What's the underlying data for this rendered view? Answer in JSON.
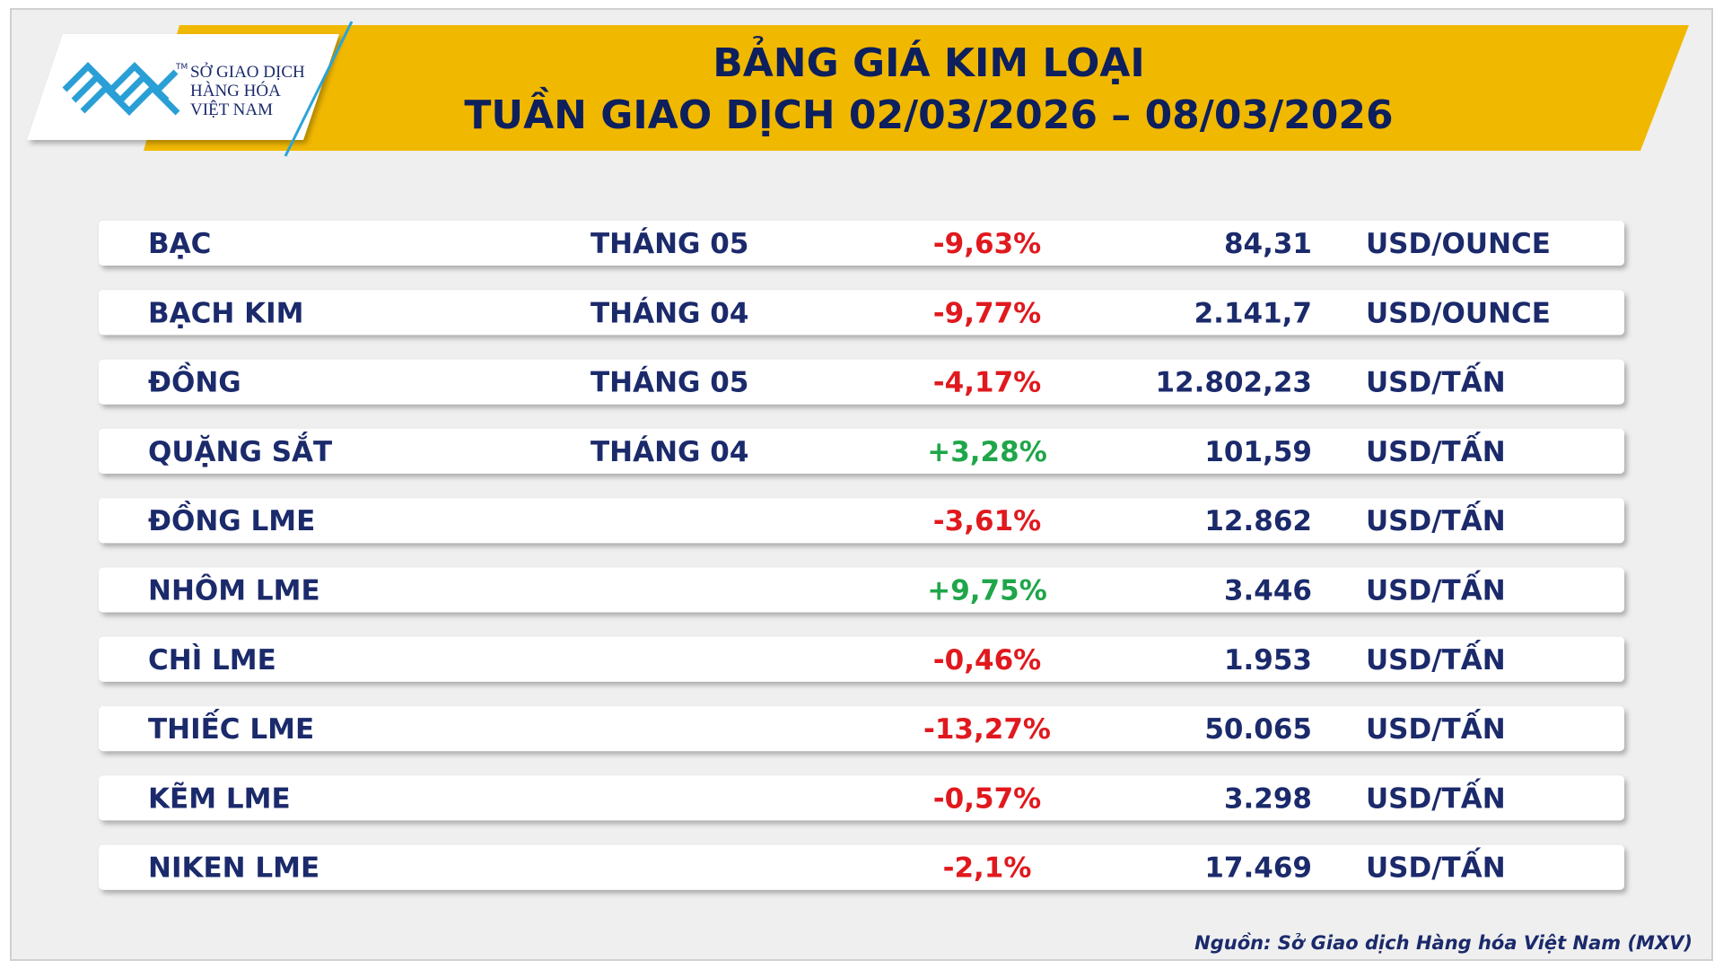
{
  "header": {
    "logo": {
      "lines": [
        "SỞ GIAO DỊCH",
        "HÀNG HÓA",
        "VIỆT NAM"
      ],
      "trademark": "TM"
    },
    "title": [
      "BẢNG GIÁ KIM LOẠI",
      "TUẦN GIAO DỊCH 02/03/2026 – 08/03/2026"
    ]
  },
  "table": {
    "rows": [
      [
        "BẠC",
        "THÁNG 05",
        "-9,63%",
        "84,31",
        "USD/OUNCE"
      ],
      [
        "BẠCH KIM",
        "THÁNG 04",
        "-9,77%",
        "2.141,7",
        "USD/OUNCE"
      ],
      [
        "ĐỒNG",
        "THÁNG 05",
        "-4,17%",
        "12.802,23",
        "USD/TẤN"
      ],
      [
        "QUẶNG SẮT",
        "THÁNG 04",
        "+3,28%",
        "101,59",
        "USD/TẤN"
      ],
      [
        "ĐỒNG LME",
        null,
        "-3,61%",
        "12.862",
        "USD/TẤN"
      ],
      [
        "NHÔM LME",
        null,
        "+9,75%",
        "3.446",
        "USD/TẤN"
      ],
      [
        "CHÌ LME",
        null,
        "-0,46%",
        "1.953",
        "USD/TẤN"
      ],
      [
        "THIẾC LME",
        null,
        "-13,27%",
        "50.065",
        "USD/TẤN"
      ],
      [
        "KẼM LME",
        null,
        "-0,57%",
        "3.298",
        "USD/TẤN"
      ],
      [
        "NIKEN LME",
        null,
        "-2,1%",
        "17.469",
        "USD/TẤN"
      ]
    ]
  },
  "footer": {
    "source": "Nguồn: Sở Giao dịch Hàng hóa Việt Nam (MXV)"
  }
}
